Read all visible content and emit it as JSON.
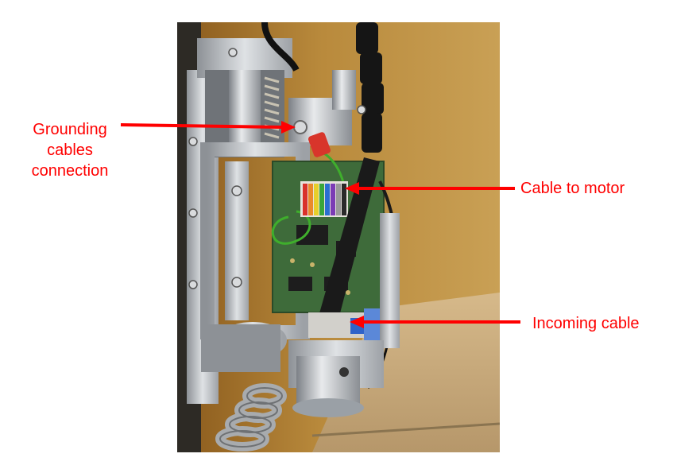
{
  "annotations": {
    "grounding": {
      "lines": [
        "Grounding",
        "cables",
        "connection"
      ]
    },
    "motor": {
      "text": "Cable to motor"
    },
    "incoming": {
      "text": "Incoming cable"
    }
  },
  "colors": {
    "annotation": "#ff0000",
    "background": "#ffffff",
    "wall": "#b88a3a",
    "metal": "#b9bcc0",
    "board": "#3e6b3a"
  }
}
